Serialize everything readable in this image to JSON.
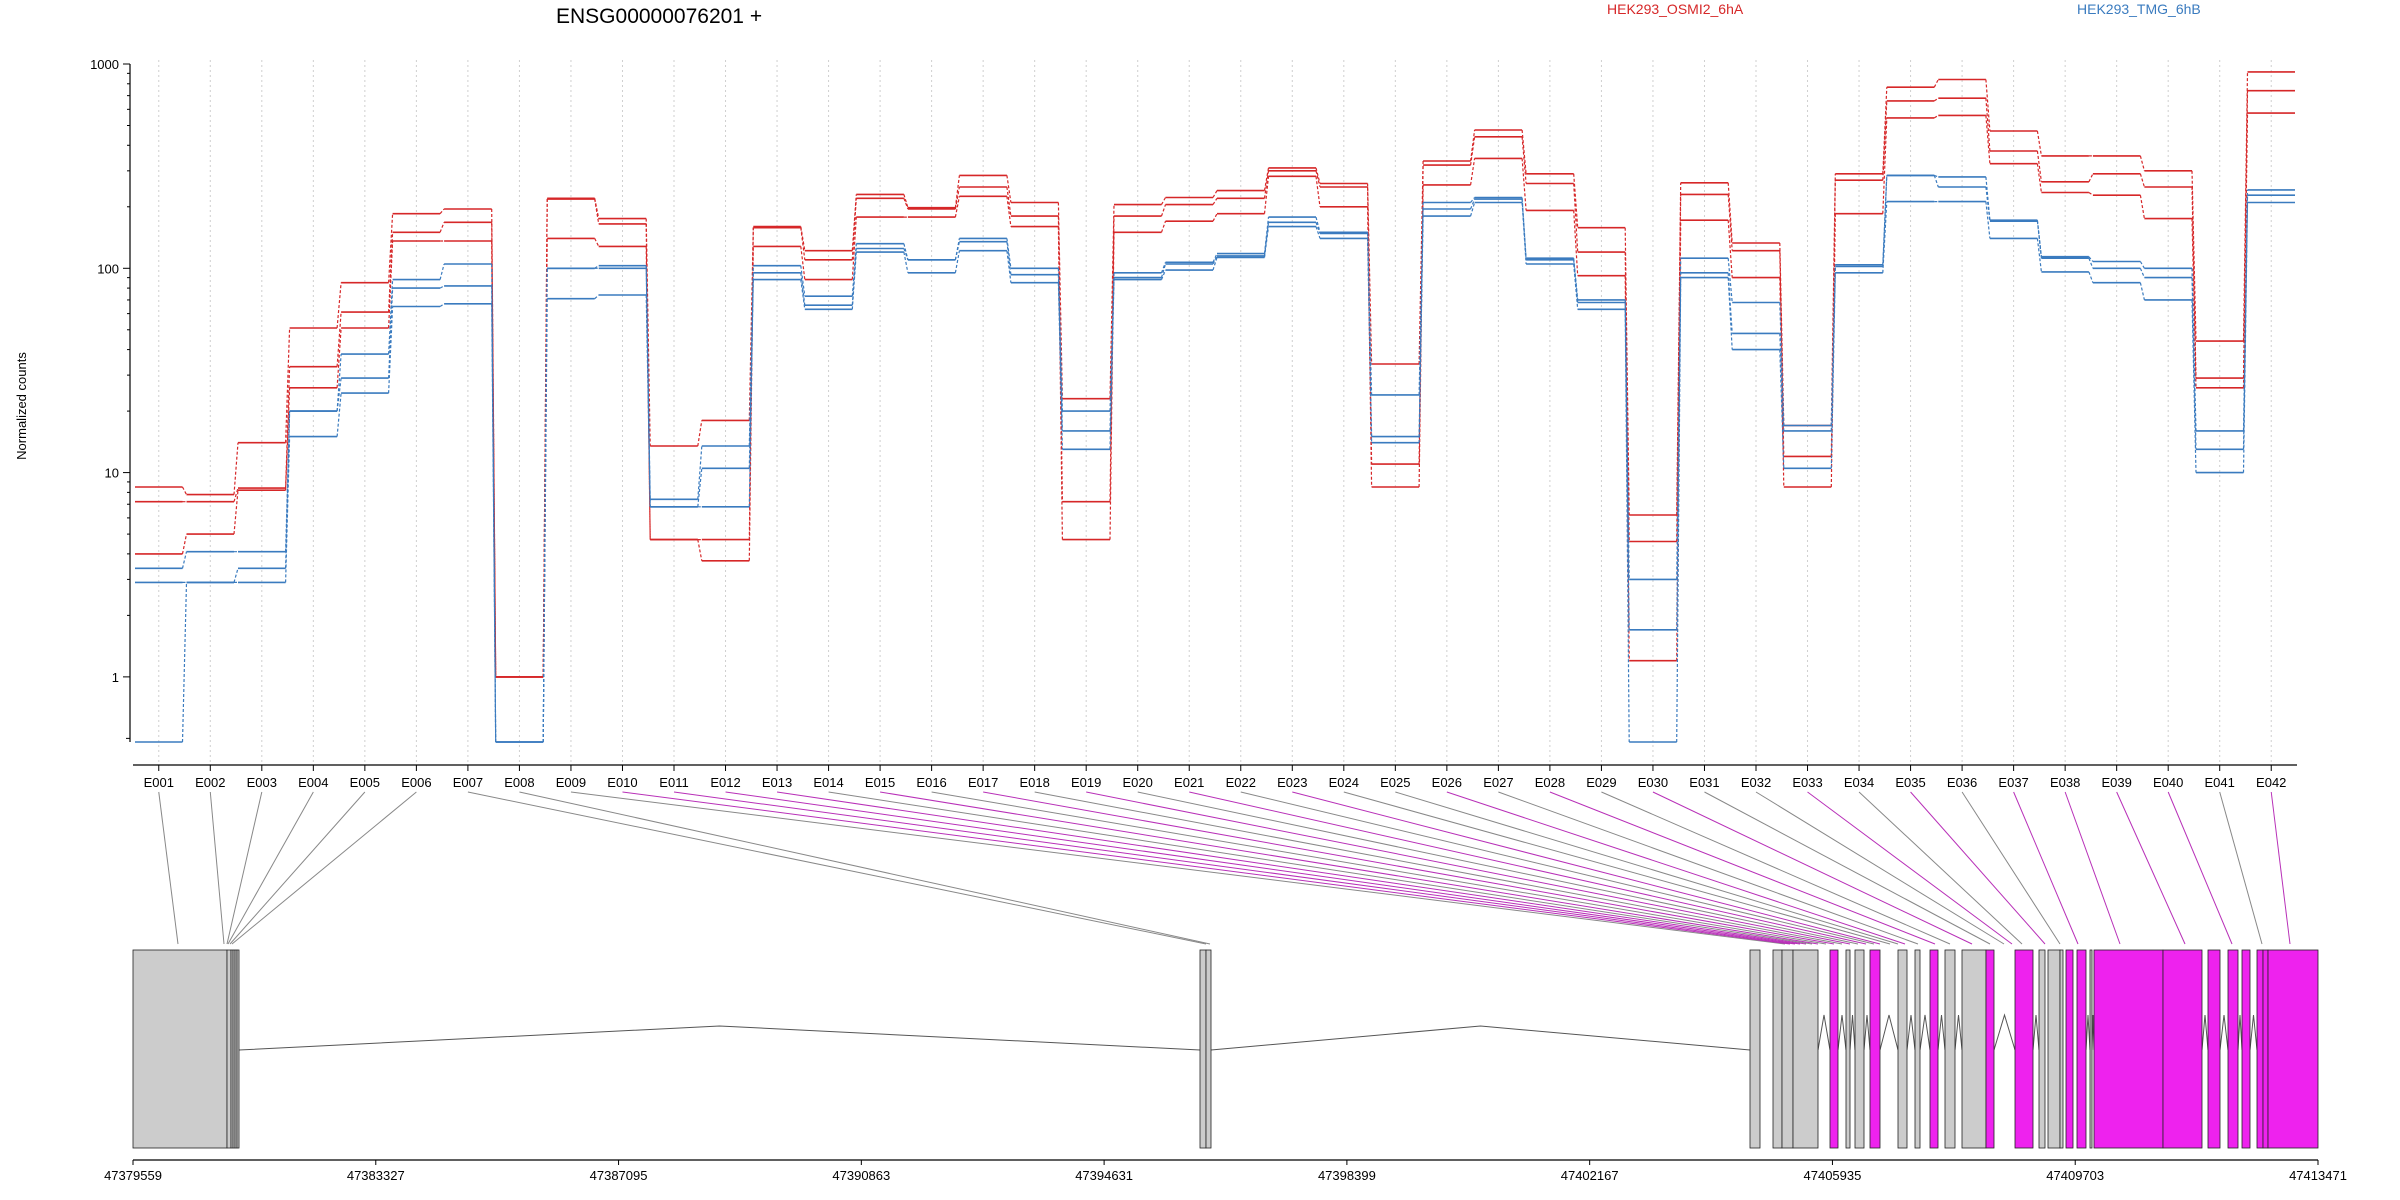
{
  "chart_data": {
    "type": "line",
    "title": "ENSG00000076201 +",
    "ylabel": "Normalized counts",
    "y_scale": "log",
    "y_ticks": [
      "1",
      "10",
      "100",
      "1000"
    ],
    "ylim": [
      0.48,
      1000
    ],
    "grid": "vertical dotted",
    "legend": {
      "position": "top",
      "entries": [
        {
          "name": "HEK293_OSMI2_6hA",
          "color": "#d62728"
        },
        {
          "name": "HEK293_TMG_6hB",
          "color": "#3a7bbf"
        }
      ]
    },
    "categories": [
      "E001",
      "E002",
      "E003",
      "E004",
      "E005",
      "E006",
      "E007",
      "E008",
      "E009",
      "E010",
      "E011",
      "E012",
      "E013",
      "E014",
      "E015",
      "E016",
      "E017",
      "E018",
      "E019",
      "E020",
      "E021",
      "E022",
      "E023",
      "E024",
      "E025",
      "E026",
      "E027",
      "E028",
      "E029",
      "E030",
      "E031",
      "E032",
      "E033",
      "E034",
      "E035",
      "E036",
      "E037",
      "E038",
      "E039",
      "E040",
      "E041",
      "E042"
    ],
    "series": [
      {
        "name": "HEK293_OSMI2_6hA",
        "color": "#d62728",
        "values": [
          8.5,
          7.8,
          14,
          51,
          85,
          185,
          195,
          1.0,
          220,
          175,
          13.5,
          18,
          160,
          122,
          230,
          198,
          285,
          210,
          23,
          205,
          222,
          240,
          310,
          260,
          34,
          335,
          475,
          290,
          158,
          6.2,
          262,
          133,
          17,
          290,
          770,
          840,
          470,
          355,
          355,
          300,
          44,
          915
        ]
      },
      {
        "name": "HEK293_OSMI2_6hA",
        "color": "#d62728",
        "values": [
          7.2,
          7.2,
          8.4,
          33,
          61,
          150,
          168,
          1.0,
          218,
          165,
          4.7,
          4.7,
          158,
          110,
          220,
          195,
          250,
          180,
          7.2,
          180,
          205,
          220,
          300,
          250,
          11,
          320,
          440,
          260,
          120,
          4.6,
          230,
          122,
          12,
          270,
          660,
          680,
          375,
          265,
          290,
          250,
          29,
          740
        ]
      },
      {
        "name": "HEK293_OSMI2_6hA",
        "color": "#d62728",
        "values": [
          4.0,
          5.0,
          8.2,
          26,
          51,
          136,
          136,
          1.0,
          140,
          128,
          4.7,
          3.7,
          128,
          88,
          178,
          178,
          225,
          160,
          4.7,
          150,
          170,
          185,
          282,
          200,
          8.5,
          256,
          345,
          192,
          92,
          1.2,
          172,
          90,
          8.5,
          185,
          545,
          560,
          325,
          235,
          228,
          175,
          26,
          575
        ]
      },
      {
        "name": "HEK293_TMG_6hB",
        "color": "#3a7bbf",
        "values": [
          3.4,
          4.1,
          4.1,
          20,
          38,
          88,
          105,
          0.48,
          100,
          103,
          7.4,
          13.5,
          103,
          73,
          132,
          110,
          140,
          100,
          20,
          95,
          107,
          118,
          178,
          150,
          24,
          210,
          222,
          112,
          70,
          3.0,
          112,
          68,
          17,
          104,
          285,
          280,
          172,
          114,
          108,
          100,
          16,
          242
        ]
      },
      {
        "name": "HEK293_TMG_6hB",
        "color": "#3a7bbf",
        "values": [
          2.9,
          2.9,
          3.4,
          20,
          29,
          80,
          82,
          0.48,
          100,
          100,
          6.8,
          6.8,
          95,
          66,
          125,
          110,
          135,
          93,
          16,
          90,
          105,
          115,
          168,
          148,
          15,
          195,
          218,
          110,
          68,
          1.7,
          95,
          48,
          16,
          102,
          285,
          250,
          170,
          112,
          100,
          90,
          13,
          228
        ]
      },
      {
        "name": "HEK293_TMG_6hB",
        "color": "#3a7bbf",
        "values": [
          0.48,
          2.9,
          2.9,
          15,
          24.5,
          65,
          67,
          0.48,
          71,
          74,
          6.8,
          10.5,
          88,
          63,
          120,
          95,
          122,
          85,
          13,
          88,
          98,
          113,
          160,
          140,
          14,
          180,
          210,
          105,
          63,
          0.48,
          90,
          40,
          10.5,
          95,
          212,
          212,
          140,
          96,
          85,
          70,
          10,
          210
        ]
      }
    ],
    "gene_model": {
      "coordinate_ticks": [
        "47379559",
        "47383327",
        "47387095",
        "47390863",
        "47394631",
        "47398399",
        "47402167",
        "47405935",
        "47409703",
        "47413471"
      ],
      "colors": {
        "constitutive": "#cccccc",
        "differential": "#ee22ee",
        "intron": "#555555"
      }
    }
  }
}
